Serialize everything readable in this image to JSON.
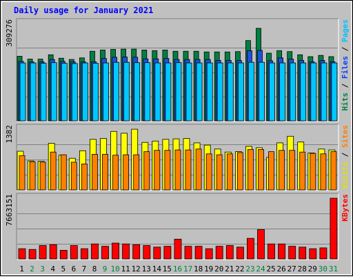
{
  "chart_data": {
    "type": "bar",
    "title": "Daily usage for January 2021",
    "days": [
      1,
      2,
      3,
      4,
      5,
      6,
      7,
      8,
      9,
      10,
      11,
      12,
      13,
      14,
      15,
      16,
      17,
      18,
      19,
      20,
      21,
      22,
      23,
      24,
      25,
      26,
      27,
      28,
      29,
      30,
      31
    ],
    "weekend_days": [
      2,
      3,
      9,
      10,
      16,
      17,
      23,
      24,
      30,
      31
    ],
    "panels": [
      {
        "id": "hits-files-pages",
        "ymax_label": "309276",
        "ymax": 309276,
        "right_labels": [
          {
            "text": "Hits",
            "color": "#008040"
          },
          {
            "text": " / ",
            "color": "#000000"
          },
          {
            "text": "Files",
            "color": "#0040ff"
          },
          {
            "text": " / ",
            "color": "#000000"
          },
          {
            "text": "Pages",
            "color": "#00c0ff"
          }
        ],
        "series": [
          {
            "name": "Hits",
            "color": "#008040",
            "values": [
              205000,
              196000,
              196000,
              210000,
              199000,
              195000,
              200000,
              221000,
              225000,
              227000,
              228000,
              228000,
              225000,
              223000,
              225000,
              221000,
              221000,
              221000,
              219000,
              219000,
              219000,
              220000,
              255000,
              294000,
              215000,
              223000,
              220000,
              210000,
              204000,
              208000,
              204000
            ]
          },
          {
            "name": "Files",
            "color": "#2050d8",
            "values": [
              189000,
              187000,
              187000,
              195000,
              189000,
              187000,
              187000,
              188000,
              198000,
              202000,
              203000,
              202000,
              197000,
              197000,
              198000,
              195000,
              195000,
              195000,
              195000,
              192000,
              192000,
              192000,
              223000,
              224000,
              191000,
              200000,
              196000,
              192000,
              188000,
              192000,
              188000
            ]
          },
          {
            "name": "Pages",
            "color": "#00c8ff",
            "values": [
              184000,
              184000,
              183000,
              185000,
              183000,
              182000,
              184000,
              183000,
              184000,
              186000,
              186000,
              185000,
              185000,
              184000,
              184000,
              185000,
              184000,
              184000,
              184000,
              184000,
              184000,
              184000,
              186000,
              186000,
              184000,
              184000,
              184000,
              184000,
              184000,
              184000,
              184000
            ]
          }
        ]
      },
      {
        "id": "visits-sites",
        "ymax_label": "1382",
        "ymax": 1382,
        "right_labels": [
          {
            "text": "Visits",
            "color": "#e0e000"
          },
          {
            "text": " / ",
            "color": "#000000"
          },
          {
            "text": "Sites",
            "color": "#ff8000"
          }
        ],
        "series": [
          {
            "name": "Visits",
            "color": "#ffff00",
            "values": [
              880,
              660,
              650,
              1060,
              790,
              720,
              890,
              1150,
              1170,
              1330,
              1290,
              1380,
              1080,
              1110,
              1150,
              1160,
              1170,
              1070,
              1020,
              930,
              860,
              870,
              990,
              960,
              740,
              1070,
              1220,
              1090,
              840,
              930,
              910
            ]
          },
          {
            "name": "Sites",
            "color": "#ff8000",
            "values": [
              780,
              640,
              630,
              860,
              800,
              630,
              590,
              810,
              810,
              790,
              800,
              800,
              870,
              900,
              900,
              910,
              910,
              930,
              820,
              800,
              820,
              850,
              920,
              920,
              870,
              900,
              900,
              860,
              830,
              820,
              870
            ]
          }
        ]
      },
      {
        "id": "kbytes",
        "ymax_label": "7663151",
        "ymax": 7663151,
        "right_labels": [
          {
            "text": "KBytes",
            "color": "#ff0000"
          }
        ],
        "series": [
          {
            "name": "KBytes",
            "color": "#ff0000",
            "values": [
              1300000,
              1200000,
              1700000,
              1800000,
              1100000,
              1700000,
              1300000,
              1900000,
              1600000,
              2000000,
              1900000,
              1800000,
              1700000,
              1500000,
              1600000,
              2500000,
              1600000,
              1600000,
              1300000,
              1600000,
              1700000,
              1500000,
              2600000,
              3700000,
              1900000,
              1900000,
              1600000,
              1500000,
              1300000,
              1400000,
              7663151
            ]
          }
        ]
      }
    ]
  }
}
